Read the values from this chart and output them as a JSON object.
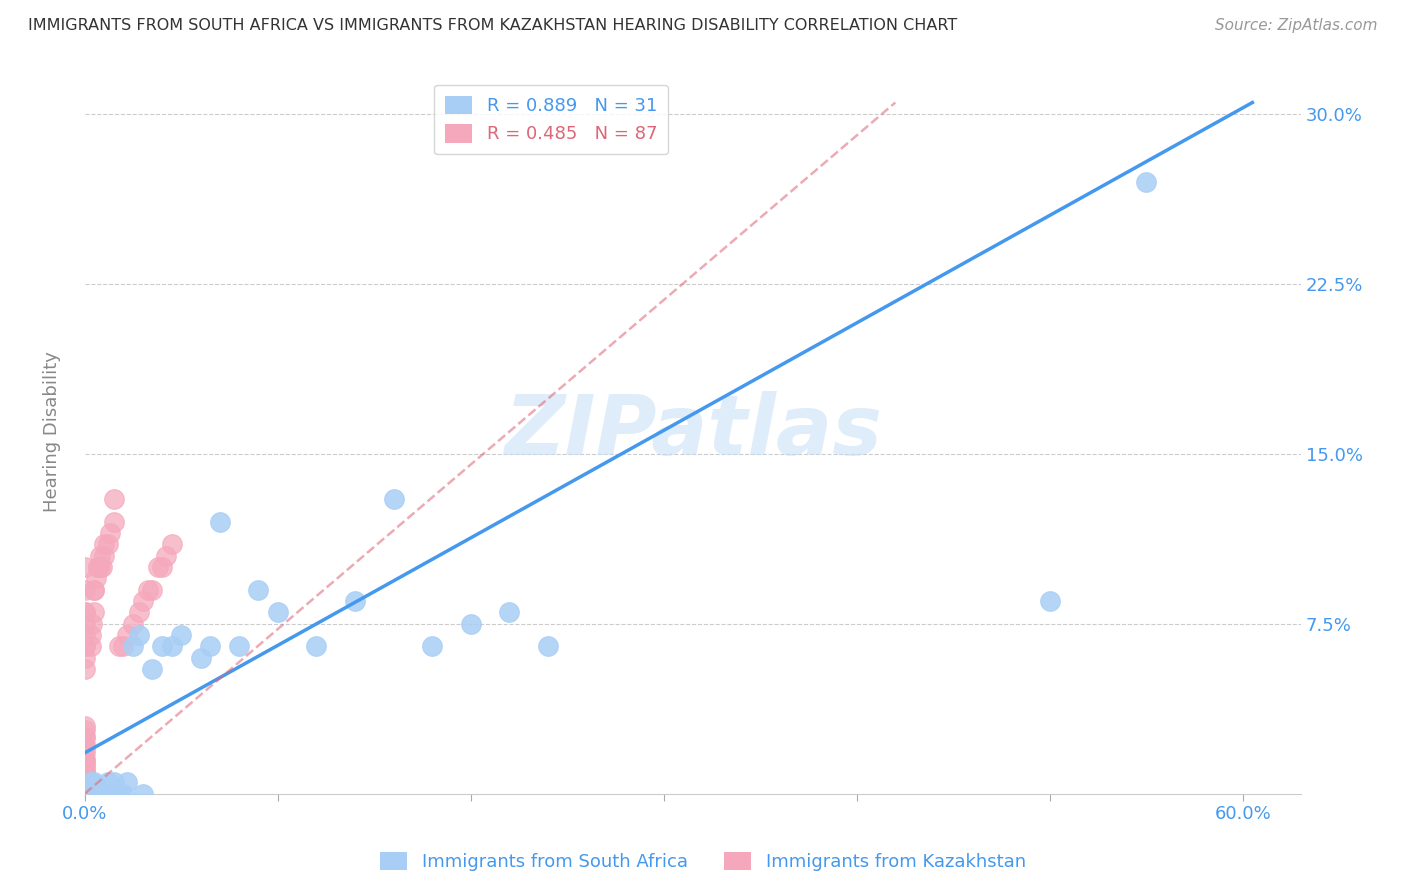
{
  "title": "IMMIGRANTS FROM SOUTH AFRICA VS IMMIGRANTS FROM KAZAKHSTAN HEARING DISABILITY CORRELATION CHART",
  "source": "Source: ZipAtlas.com",
  "ylabel": "Hearing Disability",
  "watermark": "ZIPatlas",
  "blue_R": 0.889,
  "blue_N": 31,
  "pink_R": 0.485,
  "pink_N": 87,
  "blue_color": "#a8cef5",
  "pink_color": "#f5a8bc",
  "blue_line_color": "#4499ee",
  "pink_line_color": "#dd6677",
  "pink_line_alpha": 0.55,
  "grid_color": "#cccccc",
  "background_color": "#ffffff",
  "xlim": [
    0.0,
    0.63
  ],
  "ylim": [
    0.0,
    0.32
  ],
  "blue_line_x0": 0.0,
  "blue_line_y0": 0.018,
  "blue_line_x1": 0.605,
  "blue_line_y1": 0.305,
  "pink_line_x0": 0.0,
  "pink_line_y0": 0.0,
  "pink_line_x1": 0.42,
  "pink_line_y1": 0.305,
  "blue_scatter_x": [
    0.003,
    0.005,
    0.007,
    0.01,
    0.012,
    0.015,
    0.018,
    0.022,
    0.025,
    0.028,
    0.035,
    0.04,
    0.045,
    0.05,
    0.06,
    0.065,
    0.07,
    0.08,
    0.09,
    0.1,
    0.12,
    0.14,
    0.16,
    0.18,
    0.2,
    0.22,
    0.24,
    0.02,
    0.03,
    0.5,
    0.55
  ],
  "blue_scatter_y": [
    0.005,
    0.005,
    0.0,
    0.0,
    0.005,
    0.005,
    0.0,
    0.005,
    0.065,
    0.07,
    0.055,
    0.065,
    0.065,
    0.07,
    0.06,
    0.065,
    0.12,
    0.065,
    0.09,
    0.08,
    0.065,
    0.085,
    0.13,
    0.065,
    0.075,
    0.08,
    0.065,
    0.0,
    0.0,
    0.085,
    0.27
  ],
  "pink_scatter_x": [
    0.0,
    0.0,
    0.0,
    0.0,
    0.0,
    0.0,
    0.0,
    0.0,
    0.0,
    0.0,
    0.0,
    0.0,
    0.0,
    0.0,
    0.0,
    0.0,
    0.0,
    0.0,
    0.0,
    0.0,
    0.0,
    0.0,
    0.0,
    0.0,
    0.0,
    0.0,
    0.0,
    0.0,
    0.0,
    0.0,
    0.0,
    0.0,
    0.0,
    0.0,
    0.0,
    0.0,
    0.0,
    0.0,
    0.0,
    0.0,
    0.0,
    0.0,
    0.0,
    0.0,
    0.0,
    0.0,
    0.0,
    0.0,
    0.0,
    0.0,
    0.0,
    0.0,
    0.003,
    0.003,
    0.004,
    0.005,
    0.005,
    0.005,
    0.006,
    0.007,
    0.007,
    0.008,
    0.008,
    0.009,
    0.01,
    0.01,
    0.012,
    0.013,
    0.015,
    0.015,
    0.018,
    0.02,
    0.022,
    0.025,
    0.028,
    0.03,
    0.033,
    0.035,
    0.038,
    0.04,
    0.042,
    0.045,
    0.0,
    0.0,
    0.0,
    0.0,
    0.0
  ],
  "pink_scatter_y": [
    0.0,
    0.0,
    0.0,
    0.0,
    0.0,
    0.0,
    0.0,
    0.0,
    0.0,
    0.0,
    0.0,
    0.0,
    0.0,
    0.0,
    0.0,
    0.0,
    0.0,
    0.0,
    0.003,
    0.003,
    0.004,
    0.005,
    0.005,
    0.005,
    0.006,
    0.007,
    0.008,
    0.008,
    0.009,
    0.01,
    0.01,
    0.012,
    0.013,
    0.015,
    0.015,
    0.018,
    0.02,
    0.022,
    0.025,
    0.025,
    0.028,
    0.03,
    0.055,
    0.06,
    0.065,
    0.065,
    0.07,
    0.075,
    0.08,
    0.08,
    0.09,
    0.1,
    0.065,
    0.07,
    0.075,
    0.08,
    0.09,
    0.09,
    0.095,
    0.1,
    0.1,
    0.1,
    0.105,
    0.1,
    0.105,
    0.11,
    0.11,
    0.115,
    0.12,
    0.13,
    0.065,
    0.065,
    0.07,
    0.075,
    0.08,
    0.085,
    0.09,
    0.09,
    0.1,
    0.1,
    0.105,
    0.11,
    0.0,
    0.0,
    0.0,
    0.0,
    0.0
  ]
}
